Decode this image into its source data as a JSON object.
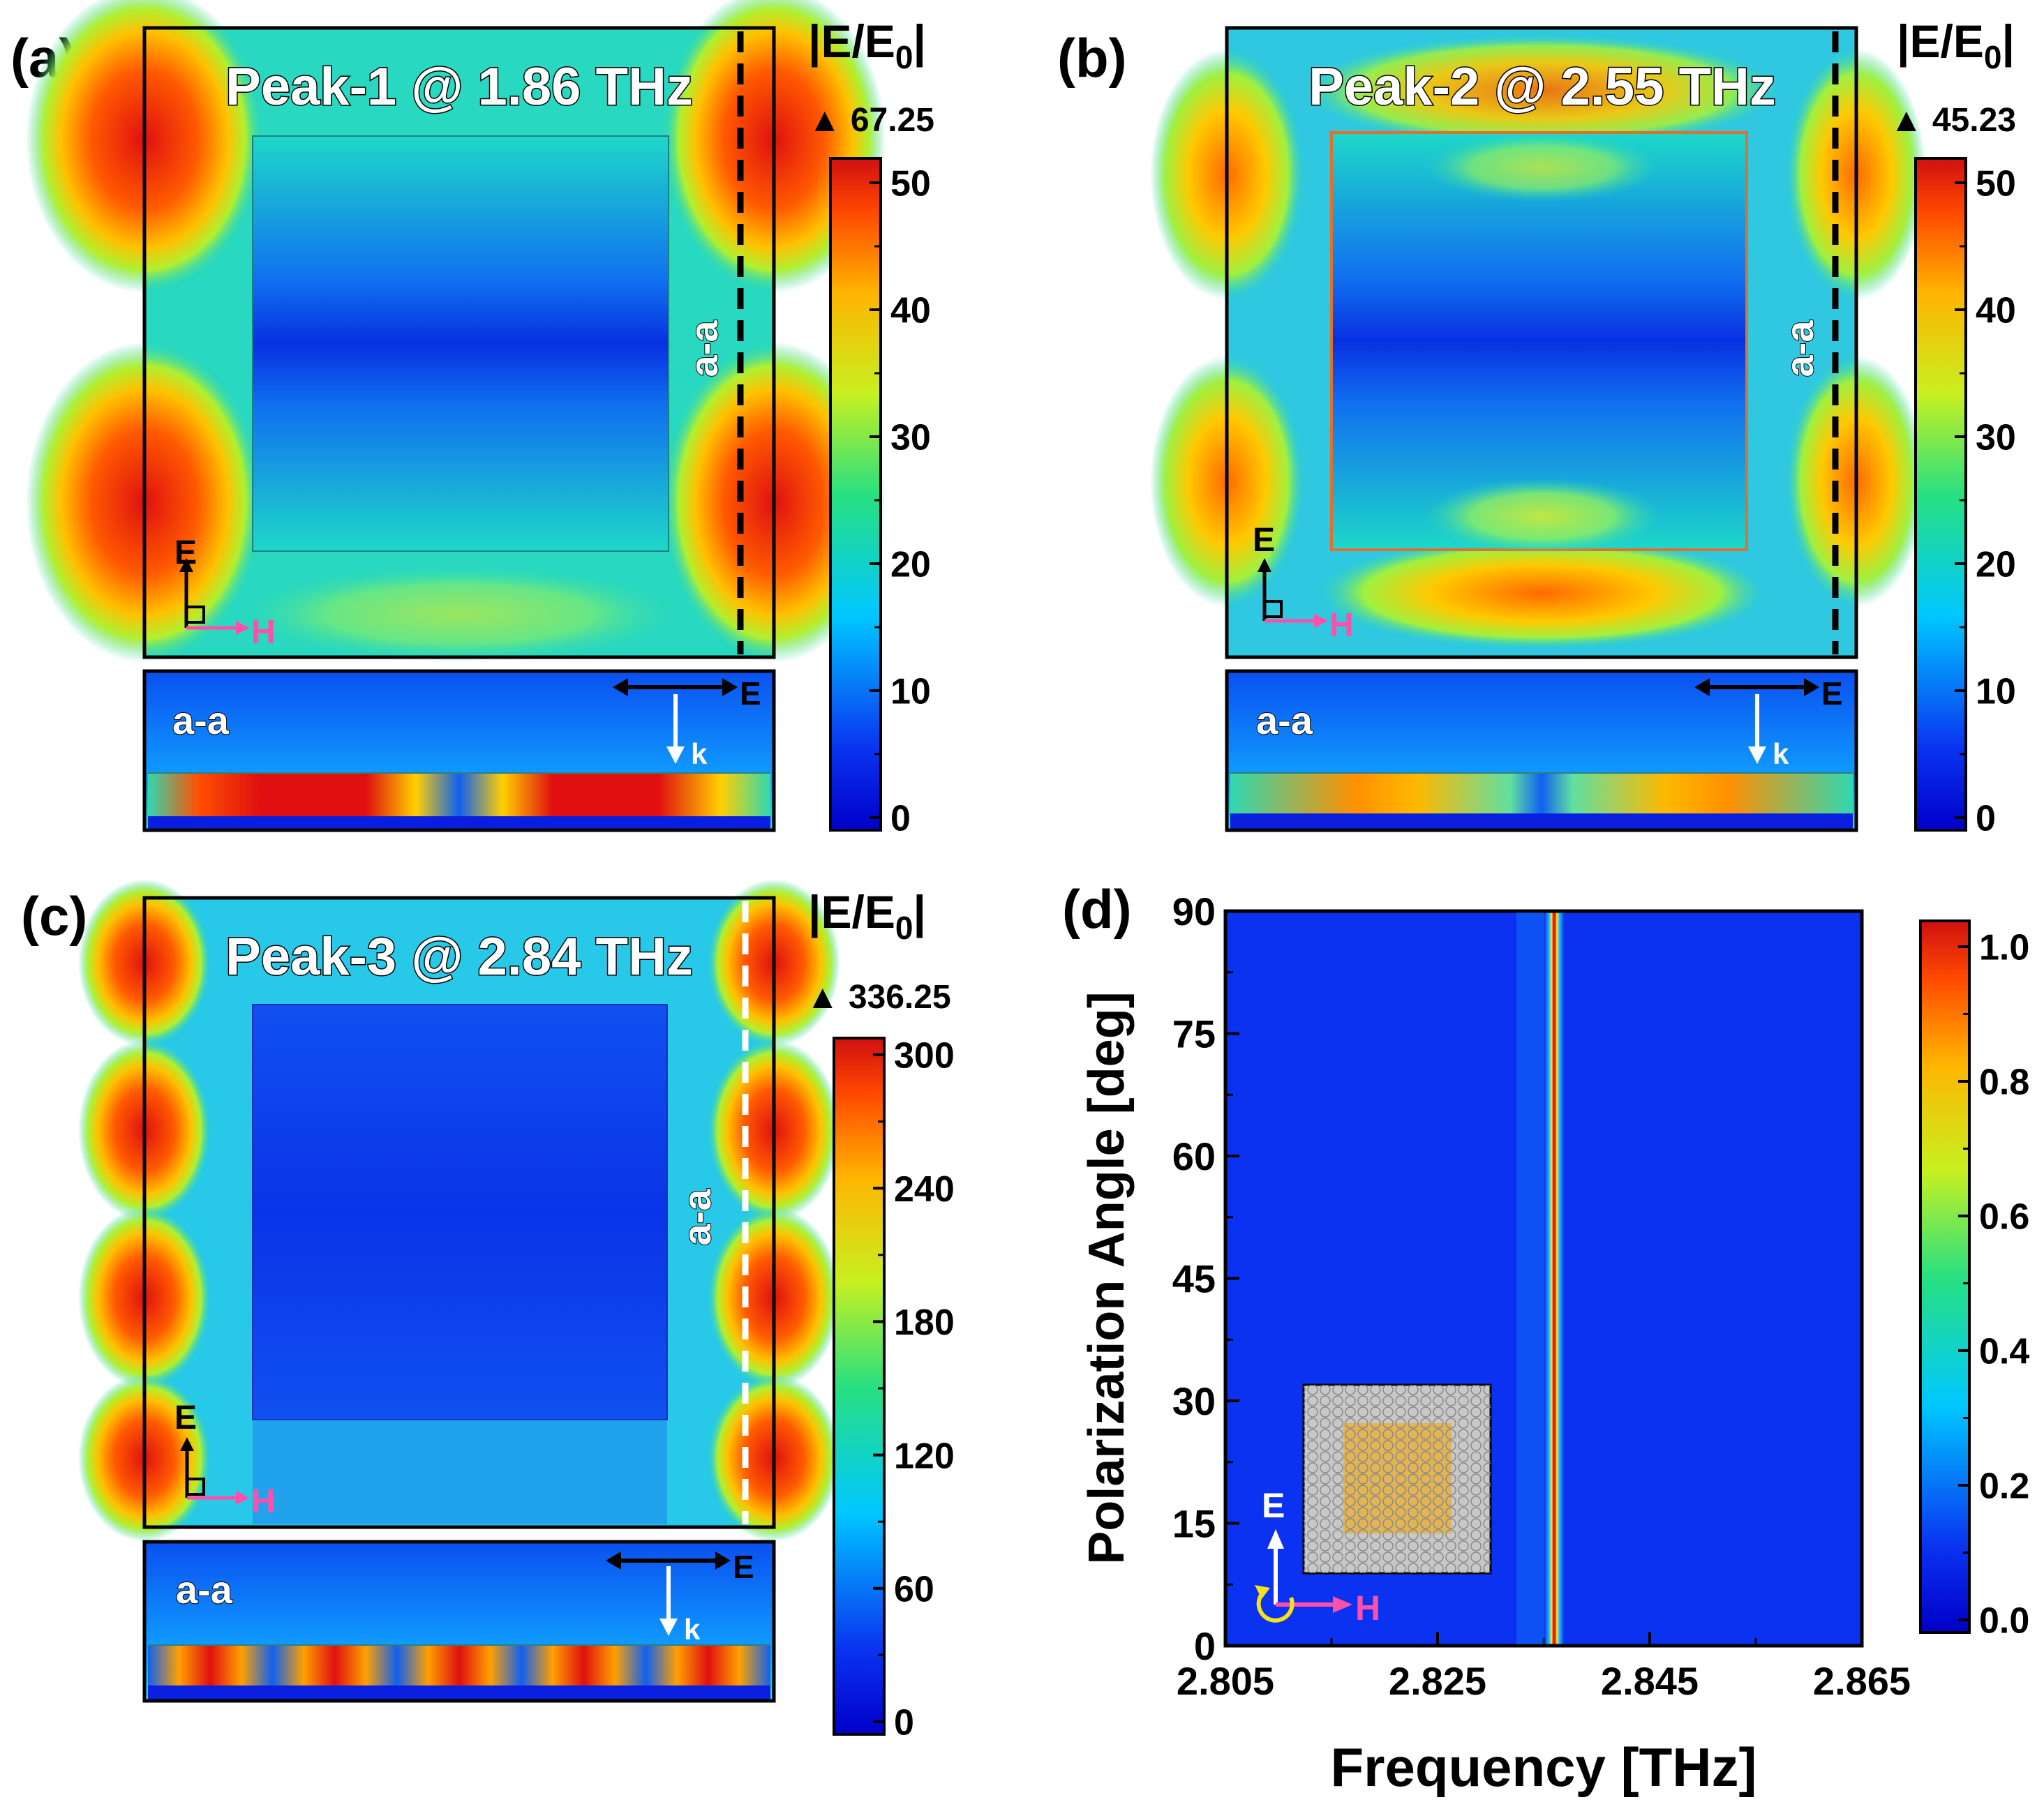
{
  "figure": {
    "panels": [
      {
        "tag": "(a)",
        "title": "Peak-1 @ 1.86 THz",
        "cbar_title_main": "|E/E",
        "cbar_title_sub": "0",
        "cbar_title_end": "|",
        "max_label": "▲ 67.25",
        "ticks": [
          "0",
          "10",
          "20",
          "30",
          "40",
          "50"
        ],
        "cut_label": "a-a",
        "section_label": "a-a",
        "axis_E": "E",
        "axis_H": "H",
        "axis_k": "k"
      },
      {
        "tag": "(b)",
        "title": "Peak-2 @ 2.55 THz",
        "cbar_title_main": "|E/E",
        "cbar_title_sub": "0",
        "cbar_title_end": "|",
        "max_label": "▲ 45.23",
        "ticks": [
          "0",
          "10",
          "20",
          "30",
          "40",
          "50"
        ],
        "cut_label": "a-a",
        "section_label": "a-a",
        "axis_E": "E",
        "axis_H": "H",
        "axis_k": "k"
      },
      {
        "tag": "(c)",
        "title": "Peak-3 @ 2.84 THz",
        "cbar_title_main": "|E/E",
        "cbar_title_sub": "0",
        "cbar_title_end": "|",
        "max_label": "▲ 336.25",
        "ticks": [
          "0",
          "60",
          "120",
          "180",
          "240",
          "300"
        ],
        "cut_label": "a-a",
        "section_label": "a-a",
        "axis_E": "E",
        "axis_H": "H",
        "axis_k": "k"
      }
    ]
  },
  "chart_data": {
    "type": "heatmap",
    "tag": "(d)",
    "xlabel": "Frequency [THz]",
    "ylabel": "Polarization Angle [deg]",
    "xlim": [
      2.805,
      2.865
    ],
    "ylim": [
      0,
      90
    ],
    "x_ticks": [
      "2.805",
      "2.825",
      "2.845",
      "2.865"
    ],
    "y_ticks": [
      "0",
      "15",
      "30",
      "45",
      "60",
      "75",
      "90"
    ],
    "resonance_center_thz": 2.836,
    "resonance_value": 1.0,
    "background_value": 0.0,
    "colorbar_ticks": [
      "0.0",
      "0.2",
      "0.4",
      "0.6",
      "0.8",
      "1.0"
    ],
    "inset_E": "E",
    "inset_H": "H"
  },
  "colors": {
    "jet_blue": "#0a32f0",
    "jet_red": "#e61a10",
    "arrow_pink": "#ff4fa8",
    "rotation_yellow": "#f5e21a"
  }
}
